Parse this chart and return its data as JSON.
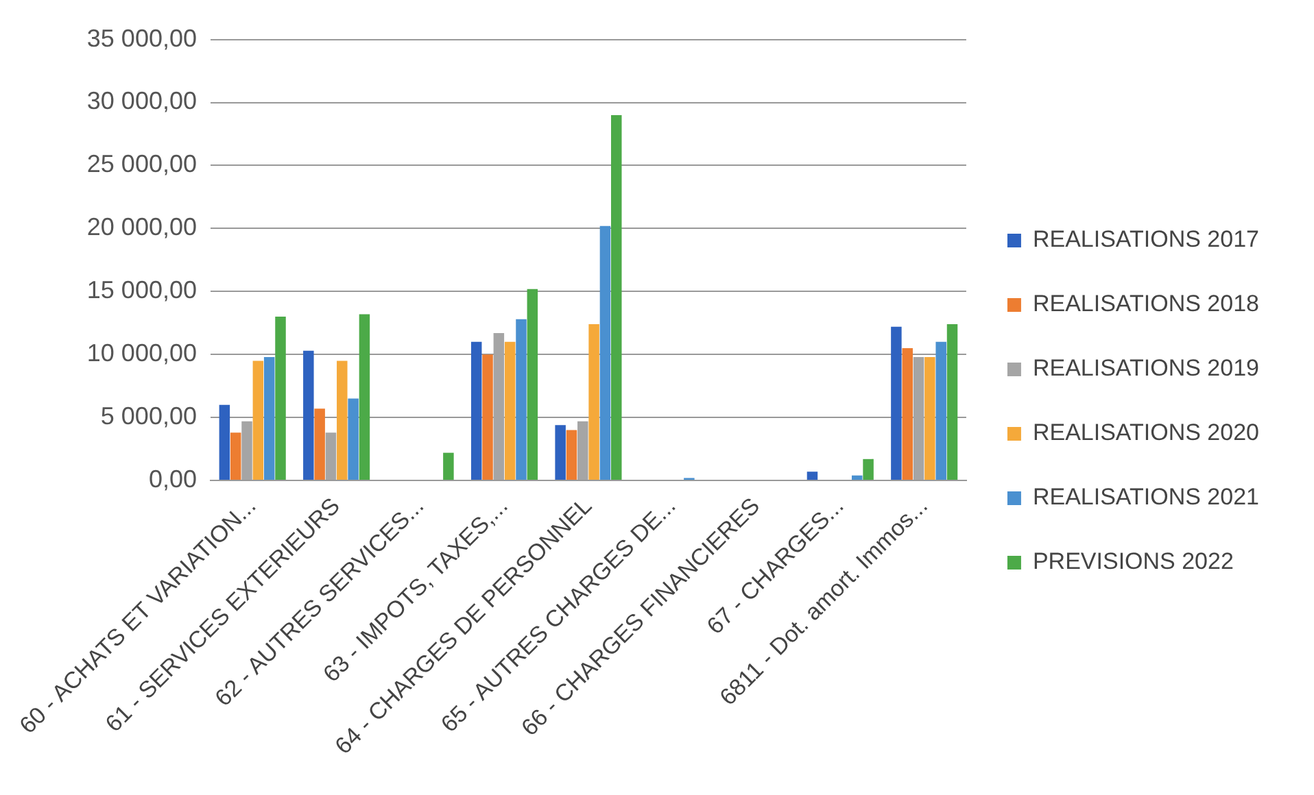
{
  "chart_data": {
    "type": "bar",
    "categories": [
      "60 - ACHATS ET VARIATION...",
      "61 - SERVICES EXTERIEURS",
      "62 - AUTRES SERVICES...",
      "63 - IMPOTS, TAXES,...",
      "64 - CHARGES DE PERSONNEL",
      "65 - AUTRES CHARGES DE...",
      "66 - CHARGES FINANCIERES",
      "67 - CHARGES...",
      "6811 - Dot. amort. Immos..."
    ],
    "series": [
      {
        "name": "REALISATIONS 2017",
        "color": "#2e62c0",
        "values": [
          6000,
          10300,
          0,
          11000,
          4400,
          0,
          0,
          700,
          12200
        ]
      },
      {
        "name": "REALISATIONS 2018",
        "color": "#ed7d31",
        "values": [
          3800,
          5700,
          0,
          10000,
          4000,
          0,
          0,
          0,
          10500
        ]
      },
      {
        "name": "REALISATIONS 2019",
        "color": "#a5a5a5",
        "values": [
          4700,
          3800,
          0,
          11700,
          4700,
          0,
          0,
          0,
          9800
        ]
      },
      {
        "name": "REALISATIONS 2020",
        "color": "#f5a93a",
        "values": [
          9500,
          9500,
          0,
          11000,
          12400,
          0,
          0,
          0,
          9800
        ]
      },
      {
        "name": "REALISATIONS 2021",
        "color": "#4a90d0",
        "values": [
          9800,
          6500,
          0,
          12800,
          20200,
          200,
          0,
          400,
          11000
        ]
      },
      {
        "name": "PREVISIONS 2022",
        "color": "#4caa48",
        "values": [
          13000,
          13200,
          2200,
          15200,
          29000,
          0,
          0,
          1700,
          12400
        ]
      }
    ],
    "ylim": [
      0,
      35000
    ],
    "yticks": [
      {
        "value": 0,
        "label": "0,00"
      },
      {
        "value": 5000,
        "label": "5 000,00"
      },
      {
        "value": 10000,
        "label": "10 000,00"
      },
      {
        "value": 15000,
        "label": "15 000,00"
      },
      {
        "value": 20000,
        "label": "20 000,00"
      },
      {
        "value": 25000,
        "label": "25 000,00"
      },
      {
        "value": 30000,
        "label": "30 000,00"
      },
      {
        "value": 35000,
        "label": "35 000,00"
      }
    ],
    "grid": "y",
    "legend": "right"
  }
}
